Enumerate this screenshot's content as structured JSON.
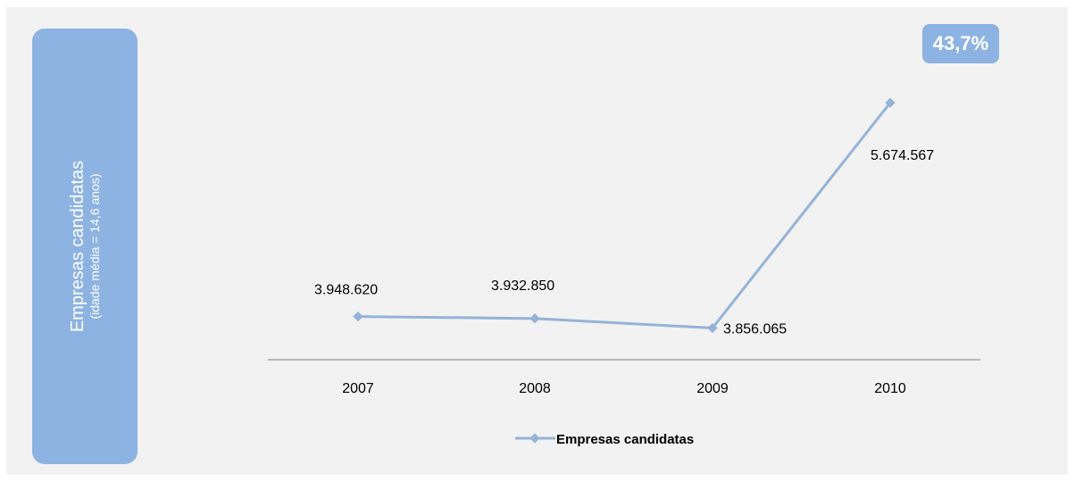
{
  "side_panel": {
    "title": "Empresas candidatas",
    "subtitle": "(idade média = 14,6 anos)"
  },
  "badge": {
    "text": "43,7%"
  },
  "colors": {
    "panel": "#8db3e2",
    "line": "#95b3d7",
    "axis": "#808080",
    "background": "#f2f2f2"
  },
  "chart_data": {
    "type": "line",
    "categories": [
      "2007",
      "2008",
      "2009",
      "2010"
    ],
    "series": [
      {
        "name": "Empresas candidatas",
        "values": [
          3948620,
          3932850,
          3856065,
          5674567
        ],
        "labels": [
          "3.948.620",
          "3.932.850",
          "3.856.065",
          "5.674.567"
        ]
      }
    ],
    "legend": "bottom",
    "grid": false,
    "ylim": [
      3600000,
      6000000
    ]
  }
}
